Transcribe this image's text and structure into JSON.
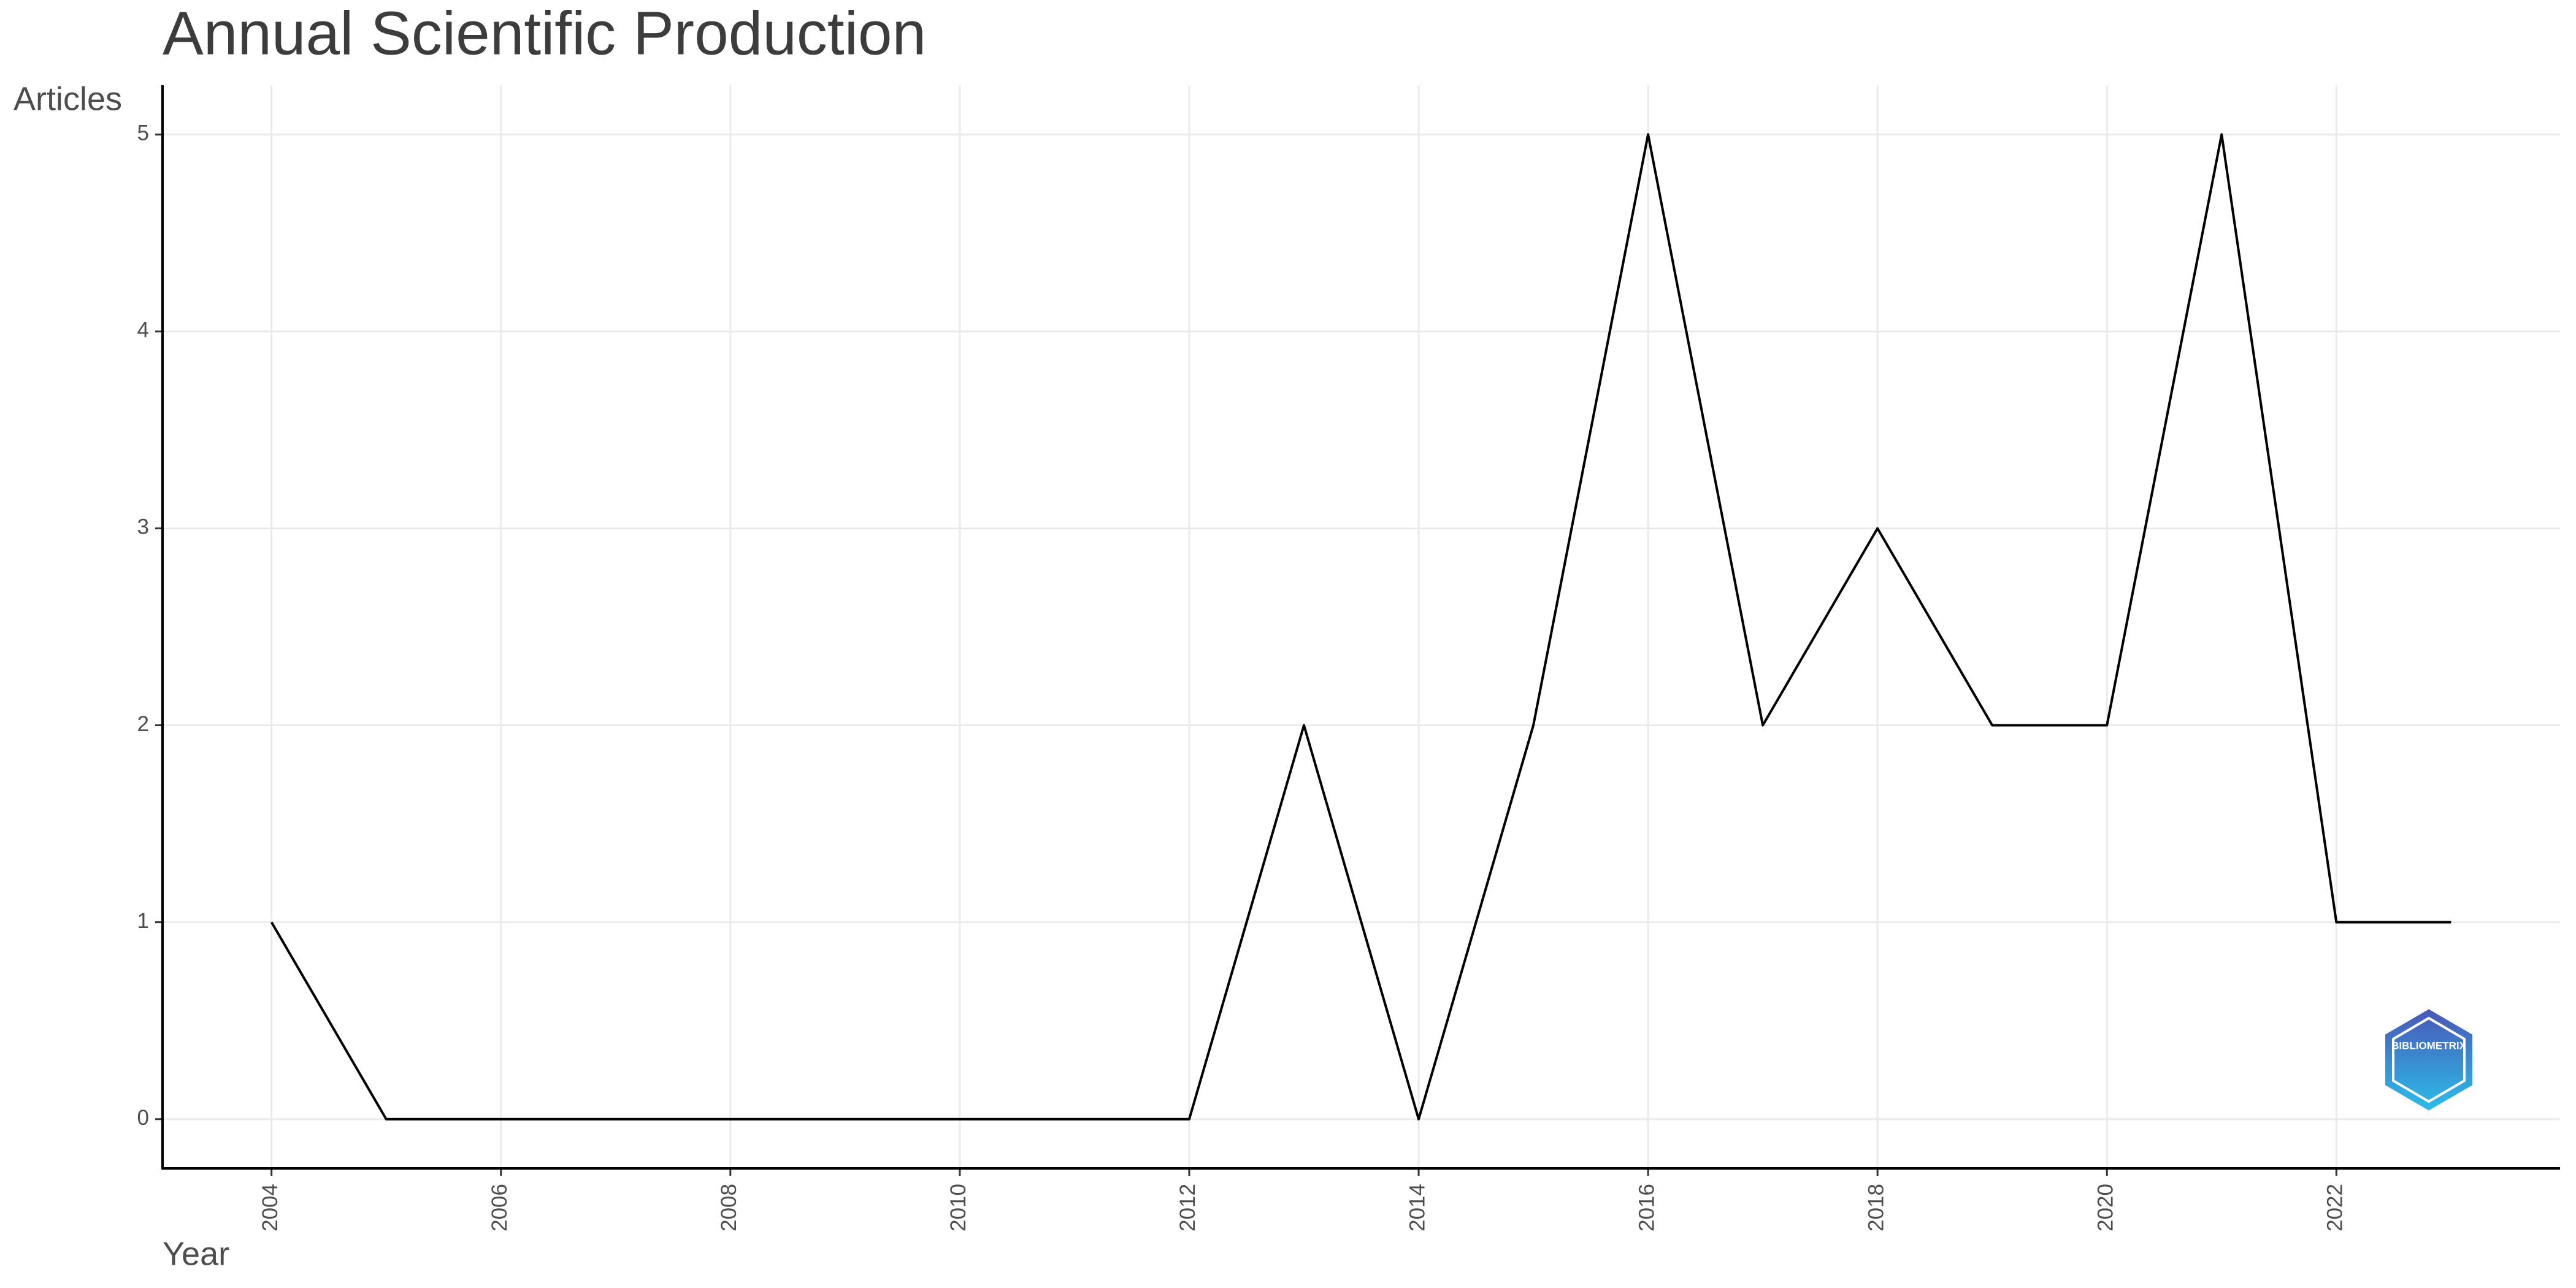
{
  "chart_data": {
    "type": "line",
    "title": "Annual Scientific Production",
    "x_label": "Year",
    "y_label": "Articles",
    "x": [
      2004,
      2005,
      2006,
      2007,
      2008,
      2009,
      2010,
      2011,
      2012,
      2013,
      2014,
      2015,
      2016,
      2017,
      2018,
      2019,
      2020,
      2021,
      2022,
      2023
    ],
    "series": [
      {
        "name": "Articles",
        "color": "#000000",
        "values": [
          1,
          0,
          0,
          0,
          0,
          0,
          0,
          0,
          0,
          2,
          0,
          2,
          5,
          2,
          3,
          2,
          2,
          5,
          1,
          1
        ]
      }
    ],
    "xlim": [
      2003.05,
      2023.95
    ],
    "xticks": [
      2004,
      2006,
      2008,
      2010,
      2012,
      2014,
      2016,
      2018,
      2020,
      2022
    ],
    "ylim": [
      -0.25,
      5.25
    ],
    "yticks": [
      0,
      1,
      2,
      3,
      4,
      5
    ],
    "grid": true,
    "logo_text": "BIBLIOMETRIX"
  }
}
